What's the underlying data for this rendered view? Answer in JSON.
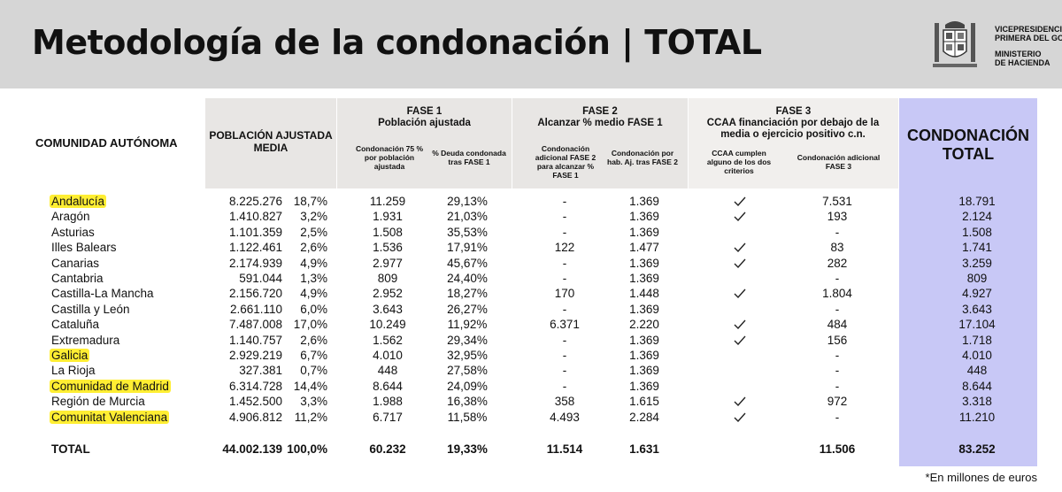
{
  "header": {
    "title": "Metodología de la condonación | TOTAL",
    "ministry_line1": "VICEPRESIDENCIA",
    "ministry_line2": "PRIMERA DEL GO",
    "ministry_line3": "MINISTERIO",
    "ministry_line4": "DE HACIENDA"
  },
  "columns": {
    "ccaa": "COMUNIDAD AUTÓNOMA",
    "poblacion": "POBLACIÓN AJUSTADA MEDIA",
    "fase1_title": "FASE 1",
    "fase1_subtitle": "Población ajustada",
    "fase1_col1": "Condonación 75 % por población ajustada",
    "fase1_col2": "% Deuda condonada tras FASE 1",
    "fase2_title": "FASE 2",
    "fase2_subtitle": "Alcanzar % medio FASE 1",
    "fase2_col1": "Condonación adicional FASE 2 para alcanzar % FASE 1",
    "fase2_col2": "Condonación por hab. Aj. tras FASE 2",
    "fase3_title": "FASE 3",
    "fase3_subtitle": "CCAA financiación por debajo de la media o ejercicio positivo c.n.",
    "fase3_col1": "CCAA cumplen alguno de los dos criterios",
    "fase3_col2": "Condonación adicional FASE 3",
    "total": "CONDONACIÓN TOTAL"
  },
  "rows": [
    {
      "name": "Andalucía",
      "highlight": true,
      "pob": "8.225.276",
      "pct": "18,7%",
      "f1a": "11.259",
      "f1b": "29,13%",
      "f2a": "-",
      "f2b": "1.369",
      "check": true,
      "f3": "7.531",
      "total": "18.791"
    },
    {
      "name": "Aragón",
      "highlight": false,
      "pob": "1.410.827",
      "pct": "3,2%",
      "f1a": "1.931",
      "f1b": "21,03%",
      "f2a": "-",
      "f2b": "1.369",
      "check": true,
      "f3": "193",
      "total": "2.124"
    },
    {
      "name": "Asturias",
      "highlight": false,
      "pob": "1.101.359",
      "pct": "2,5%",
      "f1a": "1.508",
      "f1b": "35,53%",
      "f2a": "-",
      "f2b": "1.369",
      "check": false,
      "f3": "-",
      "total": "1.508"
    },
    {
      "name": "Illes Balears",
      "highlight": false,
      "pob": "1.122.461",
      "pct": "2,6%",
      "f1a": "1.536",
      "f1b": "17,91%",
      "f2a": "122",
      "f2b": "1.477",
      "check": true,
      "f3": "83",
      "total": "1.741"
    },
    {
      "name": "Canarias",
      "highlight": false,
      "pob": "2.174.939",
      "pct": "4,9%",
      "f1a": "2.977",
      "f1b": "45,67%",
      "f2a": "-",
      "f2b": "1.369",
      "check": true,
      "f3": "282",
      "total": "3.259"
    },
    {
      "name": "Cantabria",
      "highlight": false,
      "pob": "591.044",
      "pct": "1,3%",
      "f1a": "809",
      "f1b": "24,40%",
      "f2a": "-",
      "f2b": "1.369",
      "check": false,
      "f3": "-",
      "total": "809"
    },
    {
      "name": "Castilla-La Mancha",
      "highlight": false,
      "pob": "2.156.720",
      "pct": "4,9%",
      "f1a": "2.952",
      "f1b": "18,27%",
      "f2a": "170",
      "f2b": "1.448",
      "check": true,
      "f3": "1.804",
      "total": "4.927"
    },
    {
      "name": "Castilla y León",
      "highlight": false,
      "pob": "2.661.110",
      "pct": "6,0%",
      "f1a": "3.643",
      "f1b": "26,27%",
      "f2a": "-",
      "f2b": "1.369",
      "check": false,
      "f3": "-",
      "total": "3.643"
    },
    {
      "name": "Cataluña",
      "highlight": false,
      "pob": "7.487.008",
      "pct": "17,0%",
      "f1a": "10.249",
      "f1b": "11,92%",
      "f2a": "6.371",
      "f2b": "2.220",
      "check": true,
      "f3": "484",
      "total": "17.104"
    },
    {
      "name": "Extremadura",
      "highlight": false,
      "pob": "1.140.757",
      "pct": "2,6%",
      "f1a": "1.562",
      "f1b": "29,34%",
      "f2a": "-",
      "f2b": "1.369",
      "check": true,
      "f3": "156",
      "total": "1.718"
    },
    {
      "name": "Galicia",
      "highlight": true,
      "pob": "2.929.219",
      "pct": "6,7%",
      "f1a": "4.010",
      "f1b": "32,95%",
      "f2a": "-",
      "f2b": "1.369",
      "check": false,
      "f3": "-",
      "total": "4.010"
    },
    {
      "name": "La Rioja",
      "highlight": false,
      "pob": "327.381",
      "pct": "0,7%",
      "f1a": "448",
      "f1b": "27,58%",
      "f2a": "-",
      "f2b": "1.369",
      "check": false,
      "f3": "-",
      "total": "448"
    },
    {
      "name": "Comunidad de Madrid",
      "highlight": true,
      "pob": "6.314.728",
      "pct": "14,4%",
      "f1a": "8.644",
      "f1b": "24,09%",
      "f2a": "-",
      "f2b": "1.369",
      "check": false,
      "f3": "-",
      "total": "8.644"
    },
    {
      "name": "Región de Murcia",
      "highlight": false,
      "pob": "1.452.500",
      "pct": "3,3%",
      "f1a": "1.988",
      "f1b": "16,38%",
      "f2a": "358",
      "f2b": "1.615",
      "check": true,
      "f3": "972",
      "total": "3.318"
    },
    {
      "name": "Comunitat Valenciana",
      "highlight": true,
      "pob": "4.906.812",
      "pct": "11,2%",
      "f1a": "6.717",
      "f1b": "11,58%",
      "f2a": "4.493",
      "f2b": "2.284",
      "check": true,
      "f3": "-",
      "total": "11.210"
    }
  ],
  "totals": {
    "name": "TOTAL",
    "pob": "44.002.139",
    "pct": "100,0%",
    "f1a": "60.232",
    "f1b": "19,33%",
    "f2a": "11.514",
    "f2b": "1.631",
    "f3": "11.506",
    "total": "83.252"
  },
  "footnote": "*En millones de euros",
  "colors": {
    "header_bg": "#d6d6d6",
    "column_bg": "#e8e6e4",
    "total_bg": "#c8c8f6",
    "highlight": "#ffee33"
  }
}
